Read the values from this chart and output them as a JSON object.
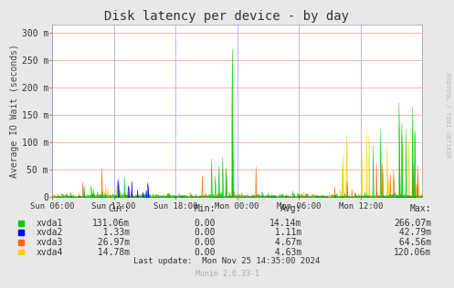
{
  "title": "Disk latency per device - by day",
  "ylabel": "Average IO Wait (seconds)",
  "background_color": "#e8e8e8",
  "plot_bg_color": "#ffffff",
  "grid_color_h": "#ffaaaa",
  "grid_color_v": "#aaaaff",
  "colors": {
    "xvda1": "#00cc00",
    "xvda2": "#0000ff",
    "xvda3": "#ff6600",
    "xvda4": "#ffcc00"
  },
  "legend": [
    {
      "label": "xvda1",
      "cur": "131.06m",
      "min": "0.00",
      "avg": "14.14m",
      "max": "266.07m"
    },
    {
      "label": "xvda2",
      "cur": "  1.33m",
      "min": "0.00",
      "avg": " 1.11m",
      "max": " 42.79m"
    },
    {
      "label": "xvda3",
      "cur": " 26.97m",
      "min": "0.00",
      "avg": " 4.67m",
      "max": " 64.56m"
    },
    {
      "label": "xvda4",
      "cur": " 14.78m",
      "min": "0.00",
      "avg": " 4.63m",
      "max": "120.06m"
    }
  ],
  "footer": "Last update:  Mon Nov 25 14:35:00 2024",
  "munin_version": "Munin 2.0.33-1",
  "yticks": [
    0,
    50,
    100,
    150,
    200,
    250,
    300
  ],
  "ytick_labels": [
    "0",
    "50 m",
    "100 m",
    "150 m",
    "200 m",
    "250 m",
    "300 m"
  ],
  "xtick_labels": [
    "Sun 06:00",
    "Sun 12:00",
    "Sun 18:00",
    "Mon 00:00",
    "Mon 06:00",
    "Mon 12:00"
  ],
  "ylim": [
    0,
    315
  ],
  "num_points": 800,
  "rrdtool_text": "RRDTOOL / TOBI OETIKER"
}
